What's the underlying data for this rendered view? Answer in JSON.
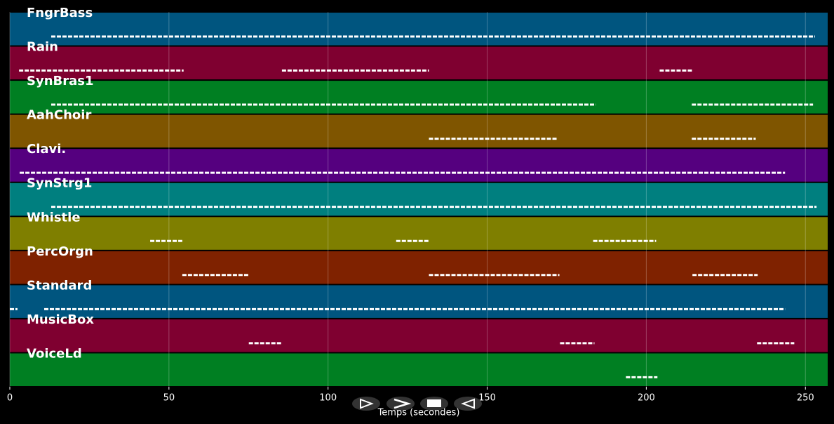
{
  "chart_data": {
    "type": "timeline",
    "xlabel": "Temps (secondes)",
    "xlim": [
      0,
      257
    ],
    "xticks": [
      0,
      50,
      100,
      150,
      200,
      250
    ],
    "grid": true,
    "series": [
      {
        "name": "FngrBass",
        "color": "#00557f",
        "spans": [
          [
            13,
            253
          ]
        ]
      },
      {
        "name": "Rain",
        "color": "#7f0030",
        "spans": [
          [
            2.9,
            54.6
          ],
          [
            85.5,
            131.7
          ],
          [
            204.2,
            214.5
          ]
        ]
      },
      {
        "name": "SynBras1",
        "color": "#007f22",
        "spans": [
          [
            13,
            184.1
          ],
          [
            214.3,
            252.4
          ]
        ]
      },
      {
        "name": "AahChoir",
        "color": "#7f5500",
        "spans": [
          [
            131.7,
            172.2
          ],
          [
            214.3,
            234.4
          ]
        ]
      },
      {
        "name": "Clavi.",
        "color": "#55007f",
        "spans": [
          [
            3.1,
            243.6
          ]
        ]
      },
      {
        "name": "SynStrg1",
        "color": "#007f7f",
        "spans": [
          [
            13,
            253.5
          ]
        ]
      },
      {
        "name": "Whistle",
        "color": "#7f7f00",
        "spans": [
          [
            44.1,
            54.2
          ],
          [
            121.4,
            131.7
          ],
          [
            183.3,
            203.1
          ]
        ]
      },
      {
        "name": "PercOrgn",
        "color": "#7f2200",
        "spans": [
          [
            54.2,
            75.1
          ],
          [
            131.7,
            172.7
          ],
          [
            214.5,
            235
          ]
        ]
      },
      {
        "name": "Standard",
        "color": "#00557f",
        "spans": [
          [
            0,
            2.4
          ],
          [
            10.8,
            243.6
          ]
        ]
      },
      {
        "name": "MusicBox",
        "color": "#7f0030",
        "spans": [
          [
            75.1,
            85.5
          ],
          [
            172.9,
            183.7
          ],
          [
            234.8,
            246.5
          ]
        ]
      },
      {
        "name": "VoiceLd",
        "color": "#007f22",
        "spans": [
          [
            193.6,
            203.5
          ]
        ]
      }
    ]
  }
}
